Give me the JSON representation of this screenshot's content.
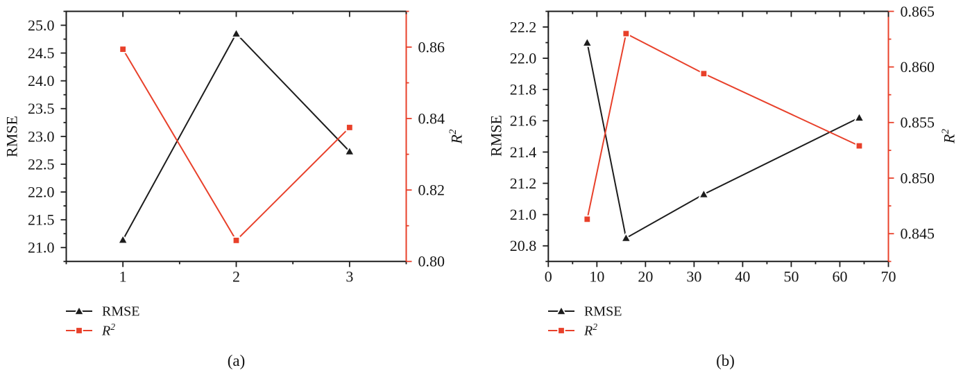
{
  "figure": {
    "background": "#ffffff",
    "line_color_black": "#1c1c1c",
    "line_color_red": "#e8402a",
    "text_color": "#141414"
  },
  "chart_data": [
    {
      "type": "line",
      "title": "",
      "caption": "(a)",
      "xlabel": "",
      "ylabel_left": "RMSE",
      "ylabel_right": {
        "base": "R",
        "sup": "2"
      },
      "x_axis": {
        "min": 0.5,
        "max": 3.5,
        "major_ticks": [
          1,
          2,
          3
        ],
        "tick_labels": [
          "1",
          "2",
          "3"
        ],
        "minor_ticks": [
          0.5,
          1.5,
          2.5,
          3.5
        ]
      },
      "y_axis_left": {
        "label": "RMSE",
        "min": 20.75,
        "max": 25.25,
        "major_ticks": [
          21.0,
          21.5,
          22.0,
          22.5,
          23.0,
          23.5,
          24.0,
          24.5,
          25.0
        ],
        "tick_labels": [
          "21.0",
          "21.5",
          "22.0",
          "22.5",
          "23.0",
          "23.5",
          "24.0",
          "24.5",
          "25.0"
        ],
        "minor_ticks": [
          20.75,
          21.25,
          21.75,
          22.25,
          22.75,
          23.25,
          23.75,
          24.25,
          24.75,
          25.25
        ]
      },
      "y_axis_right": {
        "label": "R2",
        "min": 0.8,
        "max": 0.87,
        "major_ticks": [
          0.8,
          0.82,
          0.84,
          0.86
        ],
        "tick_labels": [
          "0.80",
          "0.82",
          "0.84",
          "0.86"
        ],
        "minor_ticks": [
          0.81,
          0.83,
          0.85,
          0.87
        ]
      },
      "grid": false,
      "legend_position": "below-left",
      "series": [
        {
          "name": "RMSE",
          "axis": "left",
          "color": "#1c1c1c",
          "marker": "triangle",
          "x": [
            1,
            2,
            3
          ],
          "y": [
            21.14,
            24.85,
            22.73
          ]
        },
        {
          "name": "R2",
          "axis": "right",
          "color": "#e8402a",
          "marker": "square",
          "x": [
            1,
            2,
            3
          ],
          "y": [
            0.8594,
            0.8059,
            0.8375
          ]
        }
      ],
      "legend": [
        {
          "label": "RMSE",
          "sup": "",
          "marker": "triangle",
          "color": "#1c1c1c"
        },
        {
          "label": "R",
          "sup": "2",
          "marker": "square",
          "color": "#e8402a"
        }
      ]
    },
    {
      "type": "line",
      "title": "",
      "caption": "(b)",
      "xlabel": "",
      "ylabel_left": "RMSE",
      "ylabel_right": {
        "base": "R",
        "sup": "2"
      },
      "x_axis": {
        "min": 0,
        "max": 70,
        "major_ticks": [
          0,
          10,
          20,
          30,
          40,
          50,
          60,
          70
        ],
        "tick_labels": [
          "0",
          "10",
          "20",
          "30",
          "40",
          "50",
          "60",
          "70"
        ],
        "minor_ticks": [
          5,
          15,
          25,
          35,
          45,
          55,
          65
        ]
      },
      "y_axis_left": {
        "label": "RMSE",
        "min": 20.7,
        "max": 22.3,
        "major_ticks": [
          20.8,
          21.0,
          21.2,
          21.4,
          21.6,
          21.8,
          22.0,
          22.2
        ],
        "tick_labels": [
          "20.8",
          "21.0",
          "21.2",
          "21.4",
          "21.6",
          "21.8",
          "22.0",
          "22.2"
        ],
        "minor_ticks": [
          20.7,
          20.9,
          21.1,
          21.3,
          21.5,
          21.7,
          21.9,
          22.1,
          22.3
        ]
      },
      "y_axis_right": {
        "label": "R2",
        "min": 0.8425,
        "max": 0.865,
        "major_ticks": [
          0.845,
          0.85,
          0.855,
          0.86,
          0.865
        ],
        "tick_labels": [
          "0.845",
          "0.850",
          "0.855",
          "0.860",
          "0.865"
        ],
        "minor_ticks": [
          0.8425,
          0.8475,
          0.8525,
          0.8575,
          0.8625
        ]
      },
      "grid": false,
      "legend_position": "below-left",
      "series": [
        {
          "name": "RMSE",
          "axis": "left",
          "color": "#1c1c1c",
          "marker": "triangle",
          "x": [
            8,
            16,
            32,
            64
          ],
          "y": [
            22.1,
            20.85,
            21.13,
            21.62
          ]
        },
        {
          "name": "R2",
          "axis": "right",
          "color": "#e8402a",
          "marker": "square",
          "x": [
            8,
            16,
            32,
            64
          ],
          "y": [
            0.8463,
            0.863,
            0.8594,
            0.8529
          ]
        }
      ],
      "legend": [
        {
          "label": "RMSE",
          "sup": "",
          "marker": "triangle",
          "color": "#1c1c1c"
        },
        {
          "label": "R",
          "sup": "2",
          "marker": "square",
          "color": "#e8402a"
        }
      ]
    }
  ]
}
